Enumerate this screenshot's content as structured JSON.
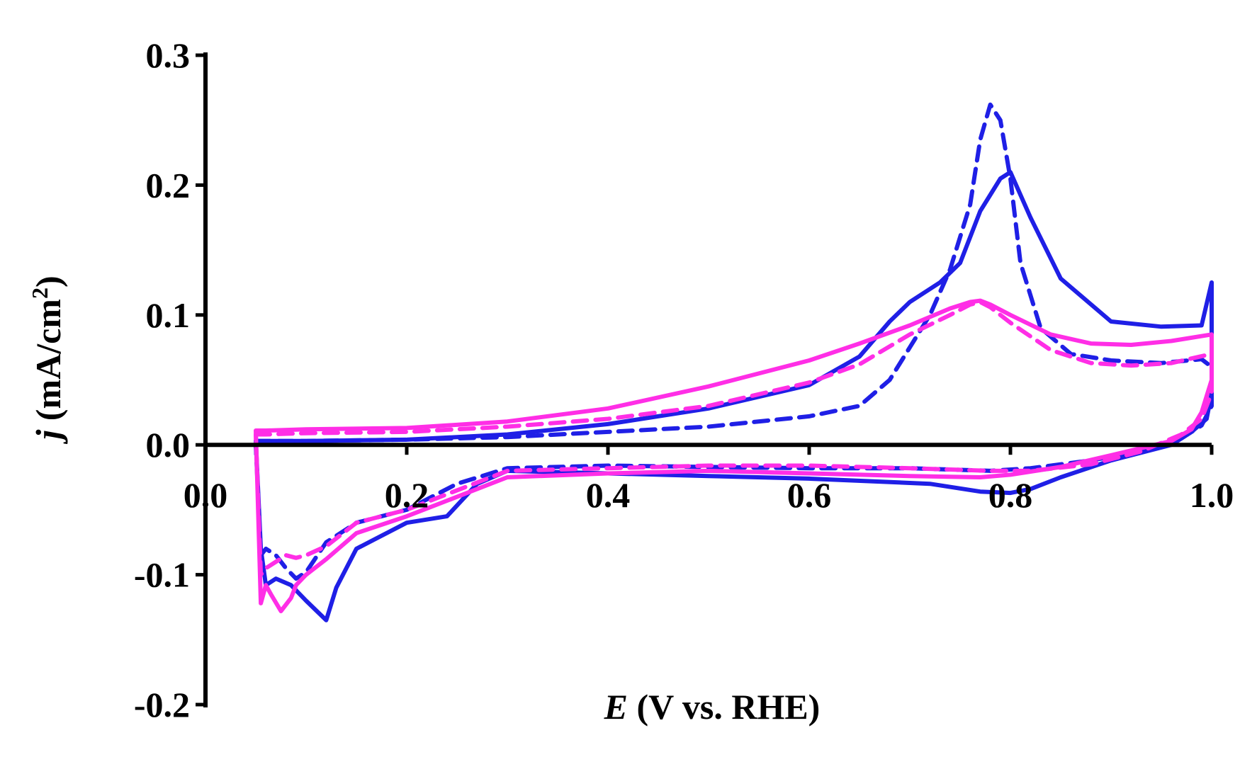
{
  "chart_data": {
    "type": "line",
    "title": "",
    "xlabel": {
      "symbol": "E",
      "rest": " (V vs. RHE)"
    },
    "ylabel": {
      "symbol": "j",
      "rest": " (mA/cm",
      "sup": "2",
      "close": ")"
    },
    "xlim": [
      0.0,
      1.0
    ],
    "ylim": [
      -0.2,
      0.3
    ],
    "xticks": [
      "0.0",
      "0.2",
      "0.4",
      "0.6",
      "0.8",
      "1.0"
    ],
    "yticks": [
      "0.3",
      "0.2",
      "0.1",
      "0.0",
      "-0.1",
      "-0.2"
    ],
    "grid": false,
    "legend": "none",
    "series": [
      {
        "color": "#1f1fe6",
        "style": "solid",
        "x": [
          0.05,
          0.06,
          0.1,
          0.2,
          0.3,
          0.4,
          0.5,
          0.6,
          0.65,
          0.68,
          0.7,
          0.73,
          0.75,
          0.77,
          0.79,
          0.8,
          0.82,
          0.85,
          0.9,
          0.95,
          0.99,
          1.0,
          1.0,
          0.995,
          0.98,
          0.96,
          0.9,
          0.85,
          0.82,
          0.8,
          0.77,
          0.72,
          0.6,
          0.5,
          0.4,
          0.3,
          0.27,
          0.24,
          0.2,
          0.15,
          0.13,
          0.12,
          0.1,
          0.085,
          0.07,
          0.06,
          0.055,
          0.05
        ],
        "y": [
          0.003,
          0.003,
          0.003,
          0.004,
          0.008,
          0.016,
          0.028,
          0.046,
          0.068,
          0.095,
          0.11,
          0.125,
          0.14,
          0.18,
          0.205,
          0.21,
          0.175,
          0.128,
          0.095,
          0.091,
          0.092,
          0.125,
          0.04,
          0.02,
          0.01,
          0.0,
          -0.012,
          -0.025,
          -0.034,
          -0.037,
          -0.036,
          -0.03,
          -0.026,
          -0.024,
          -0.022,
          -0.02,
          -0.03,
          -0.055,
          -0.06,
          -0.08,
          -0.11,
          -0.135,
          -0.12,
          -0.108,
          -0.103,
          -0.108,
          -0.08,
          0.003
        ]
      },
      {
        "color": "#1f1fe6",
        "style": "dashed",
        "x": [
          0.05,
          0.06,
          0.1,
          0.2,
          0.3,
          0.4,
          0.5,
          0.6,
          0.65,
          0.68,
          0.7,
          0.72,
          0.74,
          0.76,
          0.77,
          0.78,
          0.79,
          0.8,
          0.81,
          0.83,
          0.86,
          0.9,
          0.95,
          0.99,
          1.0,
          1.0,
          0.99,
          0.97,
          0.93,
          0.88,
          0.82,
          0.78,
          0.7,
          0.6,
          0.5,
          0.4,
          0.3,
          0.25,
          0.2,
          0.15,
          0.12,
          0.1,
          0.09,
          0.08,
          0.07,
          0.06,
          0.055,
          0.05
        ],
        "y": [
          0.003,
          0.003,
          0.003,
          0.004,
          0.006,
          0.01,
          0.014,
          0.022,
          0.03,
          0.05,
          0.075,
          0.1,
          0.135,
          0.185,
          0.235,
          0.262,
          0.25,
          0.205,
          0.14,
          0.09,
          0.07,
          0.065,
          0.063,
          0.066,
          0.06,
          0.03,
          0.015,
          0.005,
          -0.005,
          -0.012,
          -0.018,
          -0.02,
          -0.018,
          -0.018,
          -0.017,
          -0.016,
          -0.018,
          -0.03,
          -0.05,
          -0.06,
          -0.075,
          -0.098,
          -0.103,
          -0.095,
          -0.085,
          -0.08,
          -0.085,
          0.0
        ]
      },
      {
        "color": "#ff2ee6",
        "style": "solid",
        "x": [
          0.05,
          0.06,
          0.1,
          0.2,
          0.3,
          0.4,
          0.5,
          0.6,
          0.65,
          0.7,
          0.74,
          0.76,
          0.77,
          0.78,
          0.8,
          0.84,
          0.88,
          0.92,
          0.96,
          1.0,
          1.0,
          0.99,
          0.98,
          0.96,
          0.9,
          0.85,
          0.8,
          0.77,
          0.7,
          0.6,
          0.5,
          0.4,
          0.3,
          0.25,
          0.2,
          0.15,
          0.12,
          0.1,
          0.09,
          0.085,
          0.075,
          0.065,
          0.06,
          0.055,
          0.05
        ],
        "y": [
          0.011,
          0.011,
          0.012,
          0.013,
          0.018,
          0.028,
          0.045,
          0.065,
          0.078,
          0.092,
          0.105,
          0.11,
          0.111,
          0.108,
          0.1,
          0.085,
          0.078,
          0.077,
          0.08,
          0.085,
          0.05,
          0.025,
          0.012,
          0.003,
          -0.008,
          -0.017,
          -0.023,
          -0.025,
          -0.024,
          -0.022,
          -0.02,
          -0.022,
          -0.025,
          -0.04,
          -0.055,
          -0.068,
          -0.088,
          -0.1,
          -0.108,
          -0.118,
          -0.128,
          -0.115,
          -0.108,
          -0.122,
          0.011
        ]
      },
      {
        "color": "#ff2ee6",
        "style": "dashed",
        "x": [
          0.05,
          0.06,
          0.1,
          0.2,
          0.3,
          0.4,
          0.5,
          0.6,
          0.65,
          0.7,
          0.74,
          0.76,
          0.77,
          0.78,
          0.8,
          0.84,
          0.88,
          0.92,
          0.96,
          1.0,
          1.0,
          0.99,
          0.97,
          0.93,
          0.88,
          0.82,
          0.78,
          0.7,
          0.6,
          0.5,
          0.4,
          0.3,
          0.25,
          0.2,
          0.15,
          0.12,
          0.1,
          0.09,
          0.08,
          0.07,
          0.06,
          0.055,
          0.05
        ],
        "y": [
          0.008,
          0.008,
          0.009,
          0.01,
          0.014,
          0.02,
          0.03,
          0.048,
          0.062,
          0.085,
          0.1,
          0.108,
          0.11,
          0.106,
          0.094,
          0.073,
          0.063,
          0.061,
          0.063,
          0.07,
          0.04,
          0.02,
          0.008,
          -0.005,
          -0.015,
          -0.02,
          -0.02,
          -0.018,
          -0.016,
          -0.016,
          -0.018,
          -0.02,
          -0.035,
          -0.05,
          -0.06,
          -0.078,
          -0.085,
          -0.087,
          -0.085,
          -0.09,
          -0.095,
          -0.1,
          0.008
        ]
      }
    ]
  }
}
